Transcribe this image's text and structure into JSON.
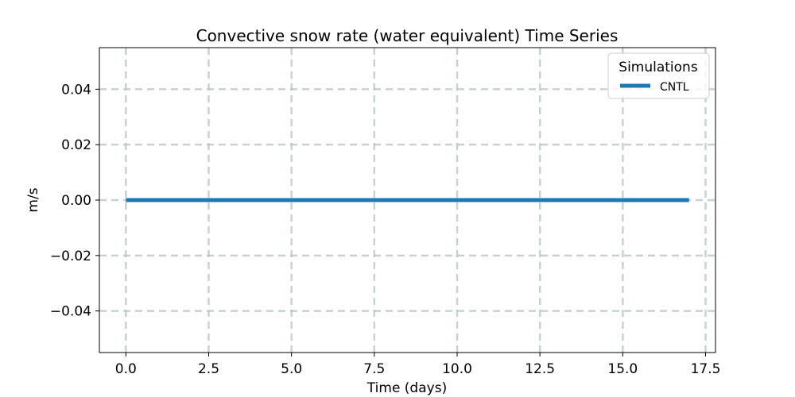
{
  "chart_data": {
    "type": "line",
    "title": "Convective snow rate (water equivalent) Time Series",
    "xlabel": "Time (days)",
    "ylabel": "m/s",
    "xlim": [
      -0.8,
      17.8
    ],
    "ylim": [
      -0.055,
      0.055
    ],
    "xticks": [
      0.0,
      2.5,
      5.0,
      7.5,
      10.0,
      12.5,
      15.0,
      17.5
    ],
    "xtick_labels": [
      "0.0",
      "2.5",
      "5.0",
      "7.5",
      "10.0",
      "12.5",
      "15.0",
      "17.5"
    ],
    "yticks": [
      -0.04,
      -0.02,
      0.0,
      0.02,
      0.04
    ],
    "ytick_labels": [
      "−0.04",
      "−0.02",
      "0.00",
      "0.02",
      "0.04"
    ],
    "grid": true,
    "legend": {
      "title": "Simulations",
      "position": "top-right"
    },
    "series": [
      {
        "name": "CNTL",
        "color": "#1f77b4",
        "x": [
          0.0,
          17.0
        ],
        "y": [
          0.0,
          0.0
        ]
      }
    ]
  }
}
